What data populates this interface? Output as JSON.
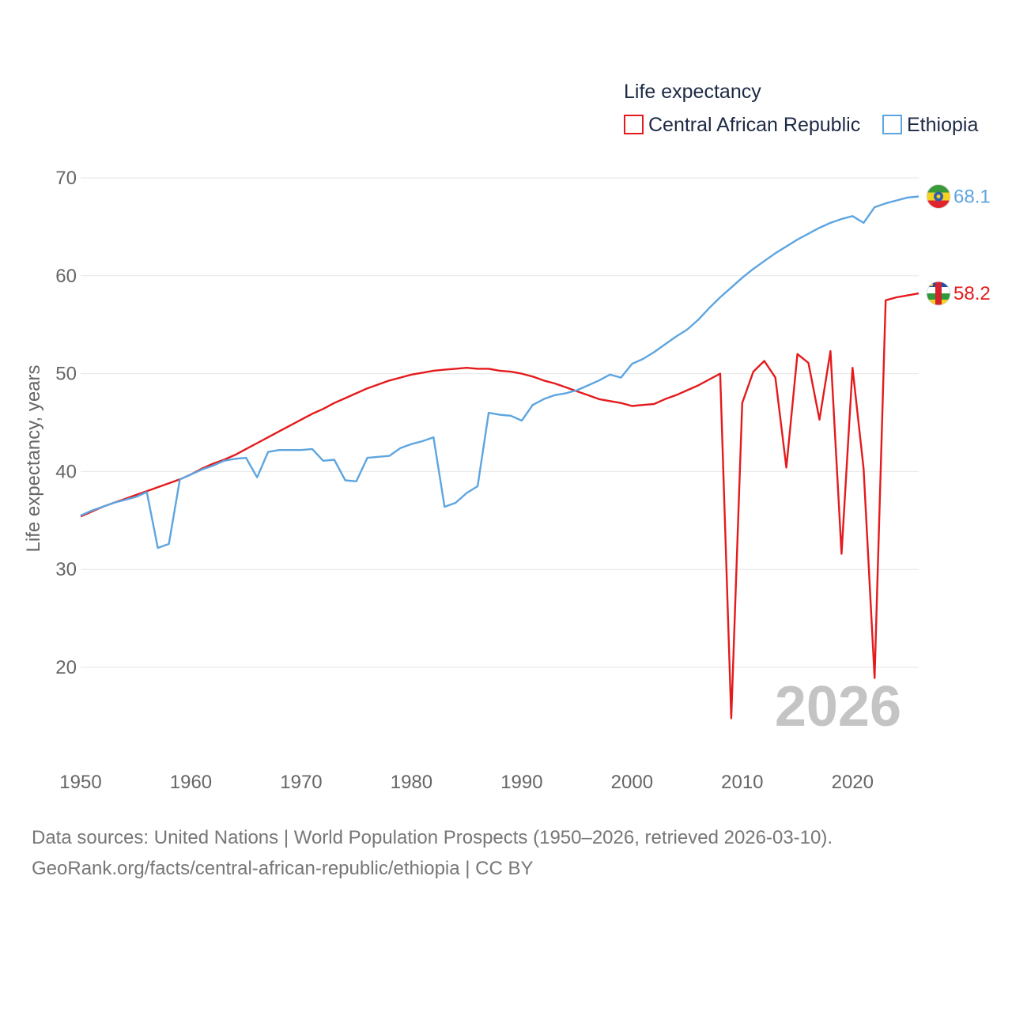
{
  "legend": {
    "title": "Life expectancy",
    "items": [
      {
        "name": "Central African Republic",
        "color": "#e41a1c"
      },
      {
        "name": "Ethiopia",
        "color": "#5da5e0"
      }
    ]
  },
  "chart_data": {
    "type": "line",
    "title": "Life expectancy",
    "xlabel": "",
    "ylabel": "Life expectancy, years",
    "xlim": [
      1950,
      2026
    ],
    "ylim": [
      10,
      72
    ],
    "x_ticks": [
      1950,
      1960,
      1970,
      1980,
      1990,
      2000,
      2010,
      2020
    ],
    "y_ticks": [
      20,
      30,
      40,
      50,
      60,
      70
    ],
    "grid": true,
    "year_watermark": "2026",
    "x": [
      1950,
      1951,
      1952,
      1953,
      1954,
      1955,
      1956,
      1957,
      1958,
      1959,
      1960,
      1961,
      1962,
      1963,
      1964,
      1965,
      1966,
      1967,
      1968,
      1969,
      1970,
      1971,
      1972,
      1973,
      1974,
      1975,
      1976,
      1977,
      1978,
      1979,
      1980,
      1981,
      1982,
      1983,
      1984,
      1985,
      1986,
      1987,
      1988,
      1989,
      1990,
      1991,
      1992,
      1993,
      1994,
      1995,
      1996,
      1997,
      1998,
      1999,
      2000,
      2001,
      2002,
      2003,
      2004,
      2005,
      2006,
      2007,
      2008,
      2009,
      2010,
      2011,
      2012,
      2013,
      2014,
      2015,
      2016,
      2017,
      2018,
      2019,
      2020,
      2021,
      2022,
      2023,
      2024,
      2025,
      2026
    ],
    "series": [
      {
        "name": "Central African Republic",
        "color": "#e41a1c",
        "end_label": "58.2",
        "values": [
          35.4,
          35.9,
          36.4,
          36.8,
          37.2,
          37.6,
          38.0,
          38.4,
          38.8,
          39.2,
          39.7,
          40.3,
          40.8,
          41.2,
          41.7,
          42.3,
          42.9,
          43.5,
          44.1,
          44.7,
          45.3,
          45.9,
          46.4,
          47.0,
          47.5,
          48.0,
          48.5,
          48.9,
          49.3,
          49.6,
          49.9,
          50.1,
          50.3,
          50.4,
          50.5,
          50.6,
          50.5,
          50.5,
          50.3,
          50.2,
          50.0,
          49.7,
          49.3,
          49.0,
          48.6,
          48.2,
          47.8,
          47.4,
          47.2,
          47.0,
          46.7,
          46.8,
          46.9,
          47.4,
          47.8,
          48.3,
          48.8,
          49.4,
          50.0,
          14.8,
          47.0,
          50.2,
          51.3,
          49.6,
          40.4,
          52.0,
          51.1,
          45.3,
          52.3,
          31.6,
          50.6,
          40.3,
          18.9,
          57.5,
          57.8,
          58.0,
          58.2
        ]
      },
      {
        "name": "Ethiopia",
        "color": "#5da5e0",
        "end_label": "68.1",
        "values": [
          35.5,
          36.0,
          36.4,
          36.8,
          37.1,
          37.4,
          37.9,
          32.2,
          32.6,
          39.2,
          39.7,
          40.2,
          40.6,
          41.1,
          41.3,
          41.4,
          39.4,
          42.0,
          42.2,
          42.2,
          42.2,
          42.3,
          41.1,
          41.2,
          39.1,
          39.0,
          41.4,
          41.5,
          41.6,
          42.4,
          42.8,
          43.1,
          43.5,
          36.4,
          36.8,
          37.8,
          38.5,
          46.0,
          45.8,
          45.7,
          45.2,
          46.8,
          47.4,
          47.8,
          48.0,
          48.3,
          48.8,
          49.3,
          49.9,
          49.6,
          51.0,
          51.5,
          52.2,
          53.0,
          53.8,
          54.5,
          55.5,
          56.7,
          57.8,
          58.8,
          59.8,
          60.7,
          61.5,
          62.3,
          63.0,
          63.7,
          64.3,
          64.9,
          65.4,
          65.8,
          66.1,
          65.4,
          67.0,
          67.4,
          67.7,
          68.0,
          68.1
        ]
      }
    ]
  },
  "footer": {
    "line1": "Data sources: United Nations | World Population Prospects (1950–2026, retrieved 2026-03-10).",
    "line2": "GeoRank.org/facts/central-african-republic/ethiopia | CC BY"
  }
}
